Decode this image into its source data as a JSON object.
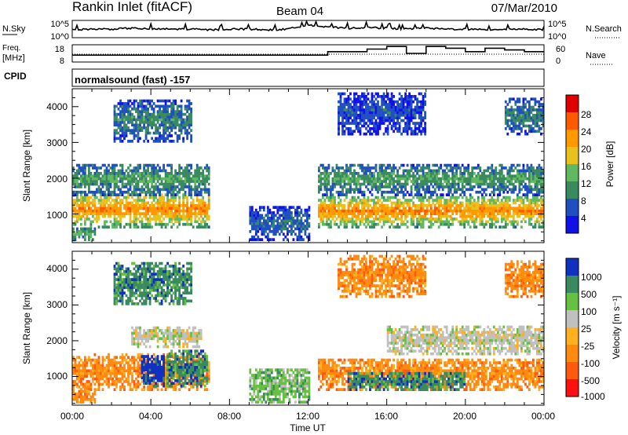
{
  "header": {
    "station": "Rankin Inlet (fitACF)",
    "beam": "Beam 04",
    "date": "07/Mar/2010"
  },
  "top_panels": {
    "nsky_label": "N.Sky",
    "nsearch_label": "N.Search",
    "nsky_ticks": [
      "10^5",
      "10^0"
    ],
    "nsearch_ticks": [
      "10^5",
      "10^0"
    ],
    "freq_label_1": "Freq.",
    "freq_label_2": "[MHz]",
    "freq_ticks": [
      "18",
      "8"
    ],
    "nave_label": "Nave",
    "nave_ticks": [
      "60",
      "0"
    ],
    "cpid_label": "CPID",
    "cpid_text": "normalsound (fast) -157"
  },
  "colors": {
    "power_scale": [
      "#1010e8",
      "#2050c0",
      "#3a8a60",
      "#60b860",
      "#e8c020",
      "#ff9900",
      "#ff5a00",
      "#e00000"
    ],
    "velocity_scale": [
      "#ff1010",
      "#ff5a10",
      "#ff8a10",
      "#ffb020",
      "#c0c0c0",
      "#68c040",
      "#3a8a60",
      "#1030c0"
    ]
  },
  "chart_data": [
    {
      "type": "heatmap",
      "name": "power",
      "ylabel": "Slant Range [km]",
      "yticks": [
        "4000",
        "3000",
        "2000",
        "1000"
      ],
      "ylim": [
        200,
        4500
      ],
      "xlim": [
        0,
        24
      ],
      "colorbar_label": "Power [dB]",
      "colorbar_ticks": [
        "28",
        "24",
        "20",
        "16",
        "12",
        "8",
        "4"
      ],
      "colorbar_range": [
        0,
        32
      ],
      "echo_bands": [
        {
          "t": [
            0.0,
            6.9
          ],
          "r": [
            600,
            1600
          ],
          "level": 24
        },
        {
          "t": [
            0.0,
            6.9
          ],
          "r": [
            1500,
            2400
          ],
          "level": 12
        },
        {
          "t": [
            2.1,
            6.0
          ],
          "r": [
            3000,
            4200
          ],
          "level": 10
        },
        {
          "t": [
            0.0,
            1.2
          ],
          "r": [
            250,
            600
          ],
          "level": 14
        },
        {
          "t": [
            9.0,
            12.0
          ],
          "r": [
            250,
            1200
          ],
          "level": 8
        },
        {
          "t": [
            12.5,
            24.0
          ],
          "r": [
            600,
            1500
          ],
          "level": 24
        },
        {
          "t": [
            12.5,
            24.0
          ],
          "r": [
            1500,
            2400
          ],
          "level": 12
        },
        {
          "t": [
            13.5,
            18.0
          ],
          "r": [
            3200,
            4400
          ],
          "level": 6
        },
        {
          "t": [
            22.0,
            24.0
          ],
          "r": [
            3200,
            4200
          ],
          "level": 10
        }
      ]
    },
    {
      "type": "heatmap",
      "name": "velocity",
      "ylabel": "Slant Range [km]",
      "yticks": [
        "4000",
        "3000",
        "2000",
        "1000"
      ],
      "ylim": [
        200,
        4500
      ],
      "xlim": [
        0,
        24
      ],
      "xticks": [
        "00:00",
        "04:00",
        "08:00",
        "12:00",
        "16:00",
        "20:00",
        "00:00"
      ],
      "xlabel": "Time UT",
      "colorbar_label": "Velocity [m s⁻¹]",
      "colorbar_ticks": [
        "1000",
        "500",
        "100",
        "25",
        "-25",
        "-100",
        "-500",
        "-1000"
      ],
      "echo_bands": [
        {
          "t": [
            0.0,
            6.9
          ],
          "r": [
            600,
            1600
          ],
          "class": 2
        },
        {
          "t": [
            3.5,
            4.6
          ],
          "r": [
            700,
            1600
          ],
          "class": 7
        },
        {
          "t": [
            4.8,
            6.8
          ],
          "r": [
            700,
            1700
          ],
          "class": 6
        },
        {
          "t": [
            3.0,
            6.5
          ],
          "r": [
            1800,
            2400
          ],
          "class": 4
        },
        {
          "t": [
            2.1,
            6.0
          ],
          "r": [
            3000,
            4200
          ],
          "class": 6
        },
        {
          "t": [
            0.0,
            1.2
          ],
          "r": [
            250,
            600
          ],
          "class": 2
        },
        {
          "t": [
            9.0,
            12.0
          ],
          "r": [
            250,
            1200
          ],
          "class": 5
        },
        {
          "t": [
            12.5,
            24.0
          ],
          "r": [
            600,
            1500
          ],
          "class": 2
        },
        {
          "t": [
            14.0,
            20.0
          ],
          "r": [
            600,
            1100
          ],
          "class": 6
        },
        {
          "t": [
            16.0,
            24.0
          ],
          "r": [
            1600,
            2400
          ],
          "class": 4
        },
        {
          "t": [
            13.5,
            18.0
          ],
          "r": [
            3200,
            4400
          ],
          "class": 2
        },
        {
          "t": [
            22.0,
            24.0
          ],
          "r": [
            3200,
            4200
          ],
          "class": 2
        }
      ]
    }
  ],
  "time_series": {
    "nsky_profile": [
      0.45,
      0.5,
      0.5,
      0.55,
      0.5,
      0.5,
      0.5,
      0.45,
      0.5,
      0.5,
      0.45,
      0.5,
      0.75,
      0.6,
      0.55,
      0.6,
      0.55,
      0.5,
      0.55,
      0.5,
      0.5,
      0.45,
      0.5,
      0.5,
      0.45
    ],
    "nave_profile": [
      0.4,
      0.4,
      0.4,
      0.4,
      0.4,
      0.4,
      0.4,
      0.4,
      0.4,
      0.4,
      0.4,
      0.4,
      0.4,
      0.6,
      0.6,
      0.75,
      0.9,
      0.5,
      0.9,
      0.8,
      0.6,
      0.8,
      0.7,
      0.6,
      0.6
    ]
  }
}
